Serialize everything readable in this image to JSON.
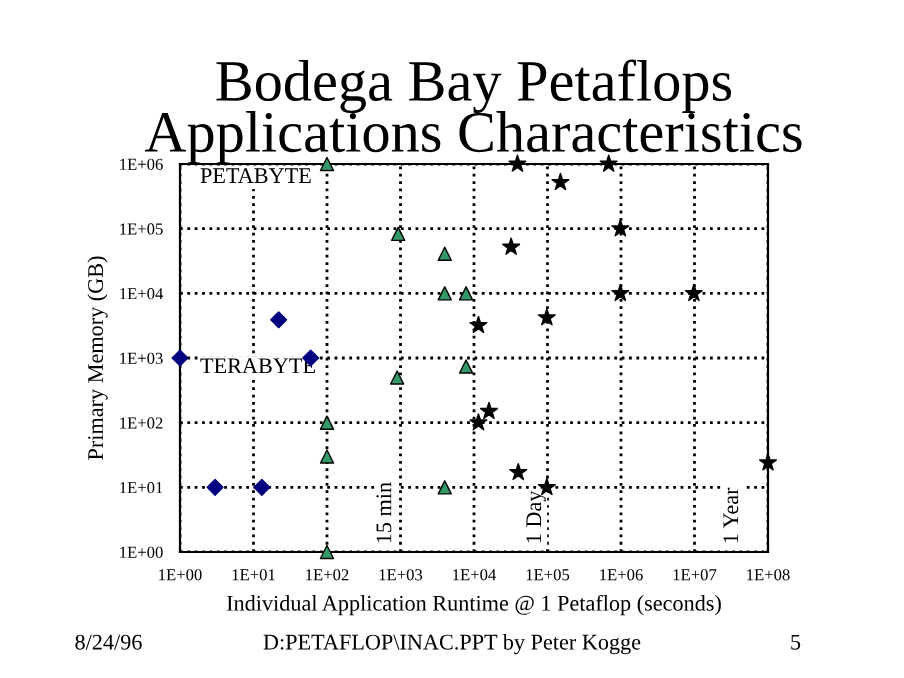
{
  "chart_data": {
    "type": "scatter",
    "title": "Bodega Bay Petaflops\nApplications Characteristics",
    "xlabel": "Individual Application Runtime @ 1 Petaflop (seconds)",
    "ylabel": "Primary Memory (GB)",
    "log": "xy",
    "grid": true,
    "legend": false,
    "line_style": "dotted",
    "xlim": [
      1,
      100000000
    ],
    "ylim": [
      1,
      1000000
    ],
    "xticks": [
      {
        "value": 1,
        "label": "1E+00"
      },
      {
        "value": 10,
        "label": "1E+01"
      },
      {
        "value": 100,
        "label": "1E+02"
      },
      {
        "value": 1000,
        "label": "1E+03"
      },
      {
        "value": 10000,
        "label": "1E+04"
      },
      {
        "value": 100000,
        "label": "1E+05"
      },
      {
        "value": 1000000,
        "label": "1E+06"
      },
      {
        "value": 10000000,
        "label": "1E+07"
      },
      {
        "value": 100000000,
        "label": "1E+08"
      }
    ],
    "yticks": [
      {
        "value": 1,
        "label": "1E+00"
      },
      {
        "value": 10,
        "label": "1E+01"
      },
      {
        "value": 100,
        "label": "1E+02"
      },
      {
        "value": 1000,
        "label": "1E+03"
      },
      {
        "value": 10000,
        "label": "1E+04"
      },
      {
        "value": 100000,
        "label": "1E+05"
      },
      {
        "value": 1000000,
        "label": "1E+06"
      }
    ],
    "series": [
      {
        "color": "#000080",
        "marker": "diamond",
        "x": [
          1,
          3,
          13,
          22,
          60
        ],
        "values": [
          1000,
          10,
          10,
          3900,
          1000
        ]
      },
      {
        "color": "#339966",
        "marker": "triangle",
        "x": [
          100,
          930,
          4000,
          4000,
          900,
          100,
          100,
          4000,
          100,
          7800,
          7800
        ],
        "values": [
          1000000,
          83000,
          41000,
          10000,
          500,
          100,
          30,
          10,
          1,
          10000,
          740
        ]
      },
      {
        "color": "#000000",
        "marker": "star",
        "x": [
          39000,
          680000,
          150000,
          980000,
          32000,
          980000,
          9800000,
          98000,
          11500,
          16000,
          11500,
          40000,
          98000,
          100000000
        ],
        "values": [
          1000000,
          1000000,
          520000,
          100000,
          52000,
          10000,
          10000,
          4200,
          3200,
          150,
          100,
          17,
          10,
          24
        ]
      }
    ],
    "annotations": [
      "PETABYTE",
      "TERABYTE",
      "15 min",
      "1 Day",
      "1 Year",
      "8/24/96",
      "D:PETAFLOP\\INAC.PPT by Peter Kogge",
      "5"
    ]
  }
}
